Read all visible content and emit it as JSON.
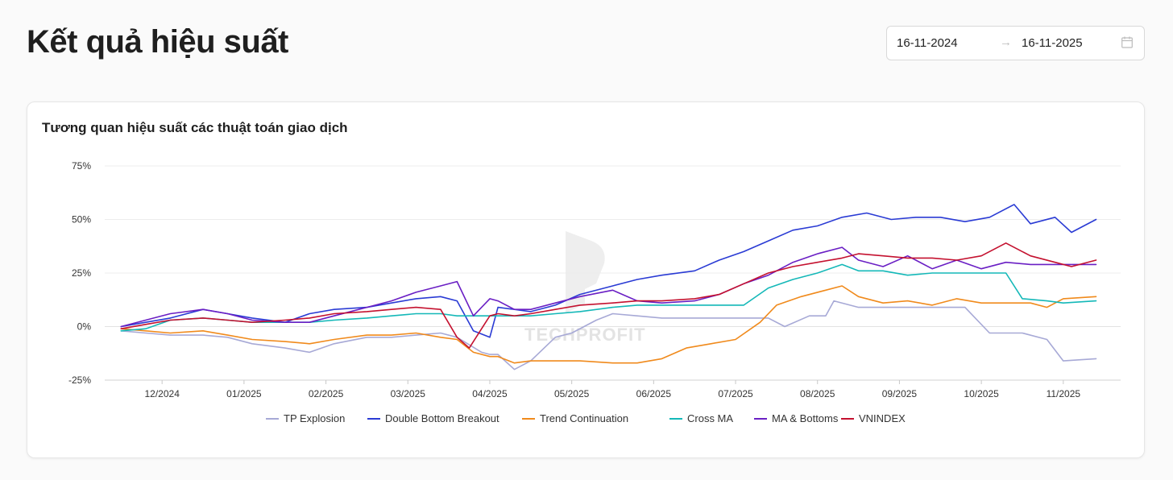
{
  "page": {
    "title": "Kết quả hiệu suất"
  },
  "date_range": {
    "start": "16-11-2024",
    "separator": "→",
    "end": "16-11-2025"
  },
  "chart_data": {
    "type": "line",
    "title": "Tương quan hiệu suất các thuật toán giao dịch",
    "watermark": "TECHPROFIT",
    "x_tick_labels": [
      "12/2024",
      "01/2025",
      "02/2025",
      "03/2025",
      "04/2025",
      "05/2025",
      "06/2025",
      "07/2025",
      "08/2025",
      "09/2025",
      "10/2025",
      "11/2025"
    ],
    "x_tick_months": [
      0.5,
      1.5,
      2.5,
      3.5,
      4.5,
      5.5,
      6.5,
      7.5,
      8.5,
      9.5,
      10.5,
      11.5
    ],
    "xlim": [
      -0.2,
      12.2
    ],
    "y_ticks": [
      -25,
      0,
      25,
      50,
      75
    ],
    "y_tick_labels": [
      "-25%",
      "0%",
      "25%",
      "50%",
      "75%"
    ],
    "ylim": [
      -25,
      75
    ],
    "grid": true,
    "legend_position": "bottom",
    "series": [
      {
        "name": "TP Explosion",
        "color": "#a7a9d6",
        "x": [
          0,
          0.3,
          0.6,
          1,
          1.3,
          1.6,
          2,
          2.3,
          2.6,
          3,
          3.3,
          3.6,
          3.9,
          4.1,
          4.4,
          4.5,
          4.6,
          4.8,
          5,
          5.3,
          5.5,
          5.8,
          6,
          6.3,
          6.6,
          7,
          7.3,
          7.6,
          7.9,
          8.1,
          8.4,
          8.6,
          8.7,
          9,
          9.3,
          9.6,
          10,
          10.3,
          10.6,
          10.9,
          11,
          11.3,
          11.5,
          11.9
        ],
        "y": [
          -2,
          -3,
          -4,
          -4,
          -5,
          -8,
          -10,
          -12,
          -8,
          -5,
          -5,
          -4,
          -3,
          -5,
          -12,
          -13,
          -13,
          -20,
          -16,
          -5,
          -3,
          3,
          6,
          5,
          4,
          4,
          4,
          4,
          4,
          0,
          5,
          5,
          12,
          9,
          9,
          9,
          9,
          9,
          -3,
          -3,
          -3,
          -6,
          -16,
          -15
        ]
      },
      {
        "name": "Double Bottom Breakout",
        "color": "#2a3bd4",
        "x": [
          0,
          0.3,
          0.6,
          1,
          1.3,
          1.6,
          2,
          2.3,
          2.6,
          3,
          3.3,
          3.6,
          3.9,
          4.1,
          4.3,
          4.5,
          4.6,
          4.8,
          5,
          5.3,
          5.6,
          6,
          6.3,
          6.6,
          7,
          7.3,
          7.6,
          7.9,
          8.2,
          8.5,
          8.8,
          9.1,
          9.4,
          9.7,
          10,
          10.3,
          10.6,
          10.9,
          11.1,
          11.4,
          11.6,
          11.9
        ],
        "y": [
          0,
          2,
          4,
          8,
          6,
          4,
          2,
          6,
          8,
          9,
          11,
          13,
          14,
          12,
          -2,
          -5,
          9,
          8,
          7,
          10,
          15,
          19,
          22,
          24,
          26,
          31,
          35,
          40,
          45,
          47,
          51,
          53,
          50,
          51,
          51,
          49,
          51,
          57,
          48,
          51,
          44,
          50
        ]
      },
      {
        "name": "Trend Continuation",
        "color": "#f08a1c",
        "x": [
          0,
          0.3,
          0.6,
          1,
          1.3,
          1.6,
          2,
          2.3,
          2.6,
          3,
          3.3,
          3.6,
          3.9,
          4.1,
          4.3,
          4.5,
          4.6,
          4.8,
          5,
          5.3,
          5.6,
          6,
          6.3,
          6.6,
          6.9,
          7.2,
          7.5,
          7.8,
          8,
          8.3,
          8.6,
          8.8,
          9,
          9.3,
          9.6,
          9.9,
          10.2,
          10.5,
          10.8,
          11.1,
          11.3,
          11.5,
          11.9
        ],
        "y": [
          -1,
          -2,
          -3,
          -2,
          -4,
          -6,
          -7,
          -8,
          -6,
          -4,
          -4,
          -3,
          -5,
          -6,
          -12,
          -14,
          -14,
          -17,
          -16,
          -16,
          -16,
          -17,
          -17,
          -15,
          -10,
          -8,
          -6,
          2,
          10,
          14,
          17,
          19,
          14,
          11,
          12,
          10,
          13,
          11,
          11,
          11,
          9,
          13,
          14
        ]
      },
      {
        "name": "Cross MA",
        "color": "#14b8b8",
        "x": [
          0,
          0.3,
          0.6,
          1,
          1.3,
          1.6,
          2,
          2.3,
          2.6,
          3,
          3.3,
          3.6,
          3.9,
          4.1,
          4.3,
          4.5,
          4.8,
          5,
          5.3,
          5.6,
          6,
          6.3,
          6.6,
          7,
          7.3,
          7.6,
          7.9,
          8.2,
          8.5,
          8.8,
          9,
          9.3,
          9.6,
          9.9,
          10.3,
          10.6,
          10.8,
          11,
          11.3,
          11.5,
          11.9
        ],
        "y": [
          -2,
          -1,
          3,
          4,
          3,
          2,
          2,
          2,
          3,
          4,
          5,
          6,
          6,
          5,
          5,
          5,
          5,
          5,
          6,
          7,
          9,
          10,
          10,
          10,
          10,
          10,
          18,
          22,
          25,
          29,
          26,
          26,
          24,
          25,
          25,
          25,
          25,
          13,
          12,
          11,
          12
        ]
      },
      {
        "name": "MA & Bottoms",
        "color": "#6a1fc4",
        "x": [
          0,
          0.3,
          0.6,
          1,
          1.3,
          1.6,
          2,
          2.3,
          2.6,
          3,
          3.3,
          3.6,
          3.9,
          4.1,
          4.3,
          4.5,
          4.6,
          4.8,
          5,
          5.3,
          5.6,
          6,
          6.3,
          6.6,
          7,
          7.3,
          7.6,
          7.9,
          8.2,
          8.5,
          8.8,
          9,
          9.3,
          9.6,
          9.9,
          10.2,
          10.5,
          10.8,
          11.1,
          11.4,
          11.6,
          11.9
        ],
        "y": [
          0,
          3,
          6,
          8,
          6,
          3,
          2,
          2,
          5,
          9,
          12,
          16,
          19,
          21,
          5,
          13,
          12,
          8,
          8,
          11,
          14,
          17,
          12,
          11,
          12,
          15,
          20,
          24,
          30,
          34,
          37,
          31,
          28,
          33,
          27,
          31,
          27,
          30,
          29,
          29,
          29,
          29
        ]
      },
      {
        "name": "VNINDEX",
        "color": "#c4112f",
        "x": [
          0,
          0.3,
          0.6,
          1,
          1.3,
          1.6,
          2,
          2.3,
          2.6,
          3,
          3.3,
          3.6,
          3.9,
          4.1,
          4.25,
          4.5,
          4.6,
          4.8,
          5,
          5.3,
          5.6,
          6,
          6.3,
          6.6,
          7,
          7.3,
          7.6,
          7.9,
          8.2,
          8.5,
          8.8,
          9,
          9.3,
          9.6,
          9.9,
          10.2,
          10.5,
          10.8,
          11.1,
          11.4,
          11.6,
          11.9
        ],
        "y": [
          -1,
          1,
          3,
          4,
          3,
          2,
          3,
          4,
          6,
          7,
          8,
          9,
          8,
          -5,
          -10,
          5,
          6,
          5,
          6,
          8,
          10,
          11,
          12,
          12,
          13,
          15,
          20,
          25,
          28,
          30,
          32,
          34,
          33,
          32,
          32,
          31,
          33,
          39,
          33,
          30,
          28,
          31
        ]
      }
    ]
  }
}
